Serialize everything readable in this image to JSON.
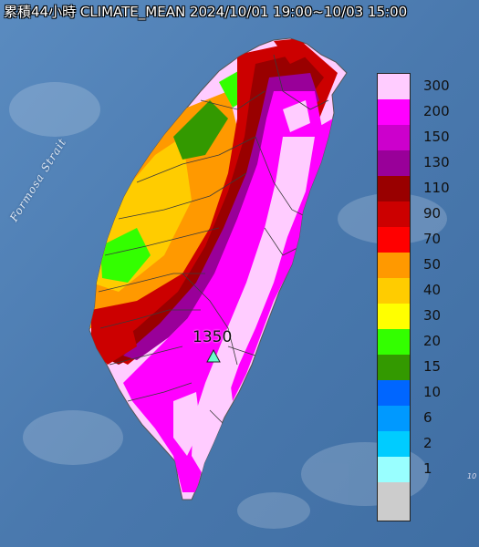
{
  "title": "累積44小時 CLIMATE_MEAN 2024/10/01 19:00~10/03 15:00",
  "strait_label": "Formosa Strait",
  "peak": {
    "value": "1350",
    "marker": "triangle-icon"
  },
  "edge_text": "10",
  "legend": {
    "items": [
      {
        "label": "300",
        "color": "#ffccff"
      },
      {
        "label": "200",
        "color": "#ff00ff"
      },
      {
        "label": "150",
        "color": "#cc00cc"
      },
      {
        "label": "130",
        "color": "#990099"
      },
      {
        "label": "110",
        "color": "#990000"
      },
      {
        "label": "90",
        "color": "#cc0000"
      },
      {
        "label": "70",
        "color": "#ff0000"
      },
      {
        "label": "50",
        "color": "#ff9900"
      },
      {
        "label": "40",
        "color": "#ffcc00"
      },
      {
        "label": "30",
        "color": "#ffff00"
      },
      {
        "label": "20",
        "color": "#33ff00"
      },
      {
        "label": "15",
        "color": "#339900"
      },
      {
        "label": "10",
        "color": "#0066ff"
      },
      {
        "label": "6",
        "color": "#0099ff"
      },
      {
        "label": "2",
        "color": "#00ccff"
      },
      {
        "label": "1",
        "color": "#99ffff"
      }
    ],
    "no_data_color": "#cccccc"
  }
}
